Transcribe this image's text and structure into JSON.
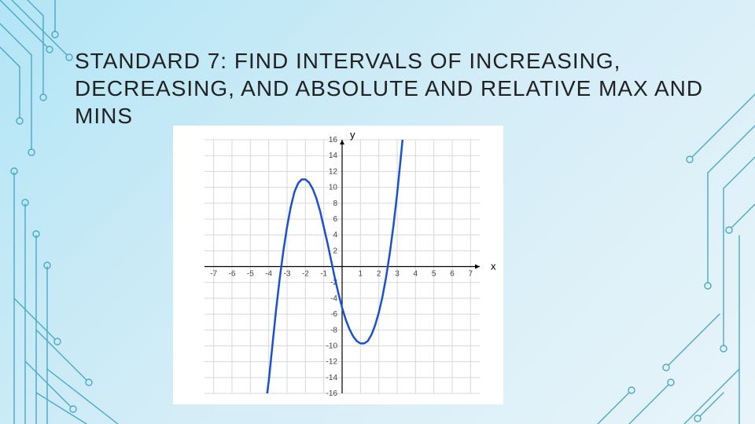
{
  "title": "STANDARD 7: FIND INTERVALS OF INCREASING, DECREASING, AND ABSOLUTE AND RELATIVE MAX AND MINS",
  "chart": {
    "type": "line",
    "background_color": "#ffffff",
    "grid_color": "#d8d8d8",
    "axis_color": "#000000",
    "curve_color": "#1a4fd6",
    "curve_width": 2.5,
    "x_axis_label": "x",
    "y_axis_label": "y",
    "xlim": [
      -7.5,
      7.5
    ],
    "ylim": [
      -16,
      16
    ],
    "x_ticks": [
      -7,
      -6,
      -5,
      -4,
      -3,
      -2,
      -1,
      1,
      2,
      3,
      4,
      5,
      6,
      7
    ],
    "y_ticks": [
      -16,
      -14,
      -12,
      -10,
      -8,
      -6,
      -4,
      -2,
      2,
      4,
      6,
      8,
      10,
      12,
      14,
      16
    ],
    "label_fontsize": 13,
    "tick_fontsize": 10,
    "curve_points": [
      [
        -4.2,
        -18
      ],
      [
        -4.0,
        -14.5
      ],
      [
        -3.8,
        -10
      ],
      [
        -3.6,
        -5.5
      ],
      [
        -3.4,
        -1.5
      ],
      [
        -3.2,
        2.0
      ],
      [
        -3.0,
        5.0
      ],
      [
        -2.8,
        7.5
      ],
      [
        -2.6,
        9.4
      ],
      [
        -2.4,
        10.5
      ],
      [
        -2.2,
        11.0
      ],
      [
        -2.0,
        11.0
      ],
      [
        -1.8,
        10.6
      ],
      [
        -1.6,
        9.8
      ],
      [
        -1.4,
        8.6
      ],
      [
        -1.2,
        7.0
      ],
      [
        -1.0,
        5.0
      ],
      [
        -0.8,
        3.0
      ],
      [
        -0.6,
        0.8
      ],
      [
        -0.4,
        -1.4
      ],
      [
        -0.2,
        -3.4
      ],
      [
        0.0,
        -5.2
      ],
      [
        0.2,
        -6.7
      ],
      [
        0.4,
        -7.9
      ],
      [
        0.6,
        -8.8
      ],
      [
        0.8,
        -9.4
      ],
      [
        1.0,
        -9.7
      ],
      [
        1.2,
        -9.7
      ],
      [
        1.4,
        -9.4
      ],
      [
        1.6,
        -8.6
      ],
      [
        1.8,
        -7.4
      ],
      [
        2.0,
        -5.8
      ],
      [
        2.2,
        -3.8
      ],
      [
        2.4,
        -1.3
      ],
      [
        2.6,
        1.7
      ],
      [
        2.8,
        5.2
      ],
      [
        3.0,
        9.2
      ],
      [
        3.2,
        13.8
      ],
      [
        3.4,
        18.5
      ]
    ]
  },
  "decor": {
    "line_color": "#4aa8c9",
    "node_color": "#4aa8c9",
    "line_width": 1.4,
    "node_radius": 4
  }
}
